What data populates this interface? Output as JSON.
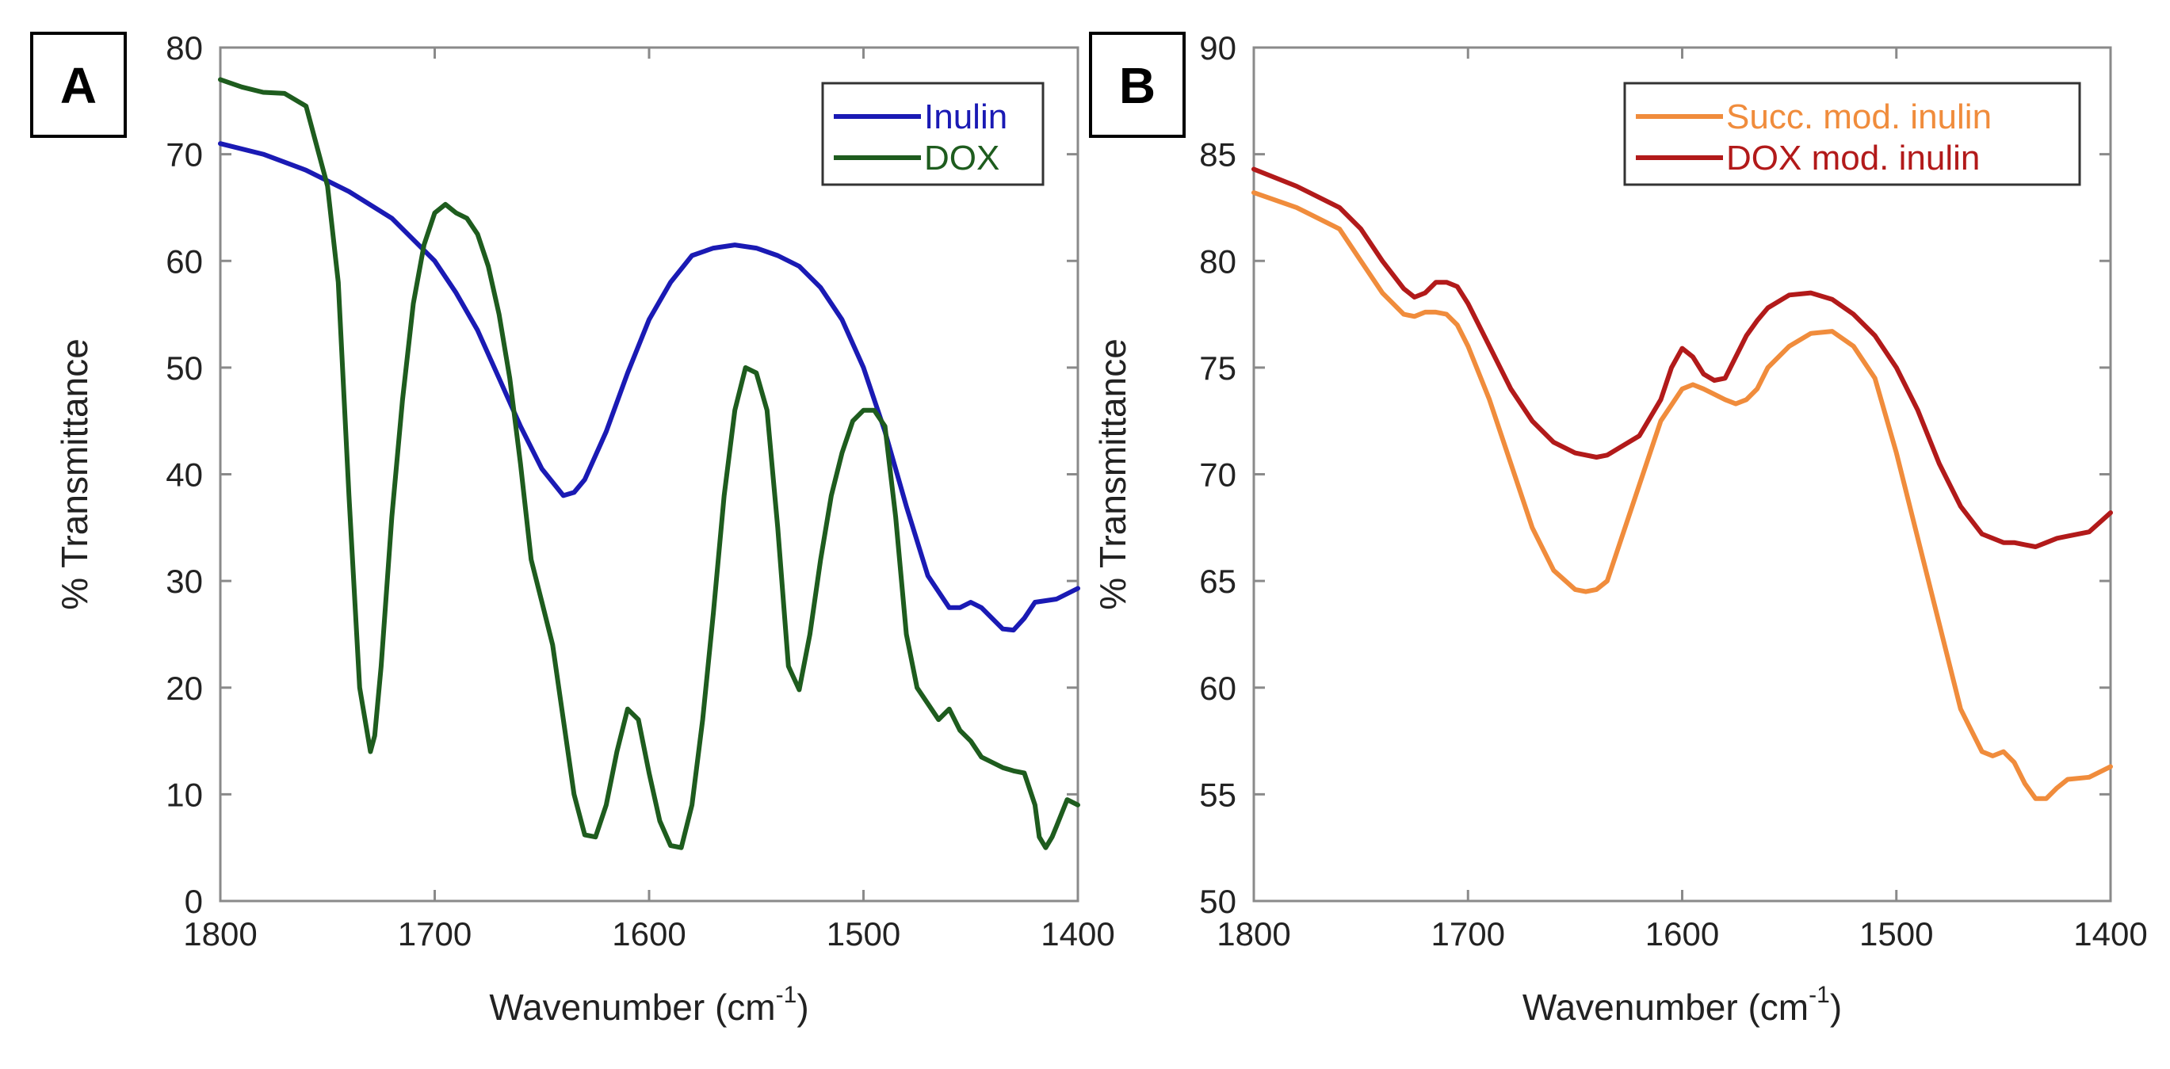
{
  "chart_data": [
    {
      "panel_label": "A",
      "type": "line",
      "title": "",
      "xlabel": "Wavenumber (cm",
      "xlabel_sup": "-1",
      "xlabel_close": ")",
      "ylabel": "% Transmittance",
      "xlim": [
        1800,
        1400
      ],
      "ylim": [
        0,
        80
      ],
      "xticks": [
        1800,
        1700,
        1600,
        1500,
        1400
      ],
      "yticks": [
        0,
        10,
        20,
        30,
        40,
        50,
        60,
        70,
        80
      ],
      "grid": false,
      "legend_position": "top-right",
      "series": [
        {
          "name": "Inulin",
          "color": "#1a1ab4",
          "x": [
            1800,
            1780,
            1760,
            1740,
            1720,
            1700,
            1690,
            1680,
            1670,
            1660,
            1650,
            1640,
            1635,
            1630,
            1620,
            1610,
            1600,
            1590,
            1580,
            1570,
            1560,
            1550,
            1540,
            1530,
            1520,
            1510,
            1500,
            1490,
            1480,
            1470,
            1460,
            1455,
            1450,
            1445,
            1440,
            1435,
            1430,
            1425,
            1420,
            1410,
            1400
          ],
          "y": [
            71,
            70,
            68.5,
            66.5,
            64,
            60,
            57,
            53.5,
            49,
            44.5,
            40.5,
            38,
            38.3,
            39.5,
            44,
            49.5,
            54.5,
            58,
            60.5,
            61.2,
            61.5,
            61.2,
            60.5,
            59.5,
            57.5,
            54.5,
            50,
            44,
            37,
            30.5,
            27.5,
            27.5,
            28,
            27.5,
            26.5,
            25.5,
            25.4,
            26.5,
            28,
            28.3,
            29.3
          ]
        },
        {
          "name": "DOX",
          "color": "#1e5c1e",
          "x": [
            1800,
            1790,
            1780,
            1770,
            1760,
            1750,
            1745,
            1740,
            1735,
            1730,
            1728,
            1725,
            1720,
            1715,
            1710,
            1705,
            1700,
            1695,
            1690,
            1685,
            1680,
            1675,
            1670,
            1665,
            1660,
            1655,
            1650,
            1645,
            1640,
            1635,
            1630,
            1625,
            1620,
            1615,
            1610,
            1605,
            1600,
            1595,
            1590,
            1585,
            1580,
            1575,
            1570,
            1565,
            1560,
            1555,
            1550,
            1545,
            1540,
            1535,
            1530,
            1525,
            1520,
            1515,
            1510,
            1505,
            1500,
            1495,
            1490,
            1485,
            1480,
            1475,
            1470,
            1465,
            1460,
            1455,
            1450,
            1445,
            1440,
            1435,
            1430,
            1425,
            1420,
            1418,
            1415,
            1412,
            1410,
            1405,
            1400
          ],
          "y": [
            77,
            76.3,
            75.8,
            75.7,
            74.5,
            67,
            58,
            38,
            20,
            14,
            15.5,
            22,
            36,
            47,
            56,
            61.5,
            64.5,
            65.3,
            64.5,
            64,
            62.5,
            59.5,
            55,
            49,
            41,
            32,
            28,
            24,
            17,
            10,
            6.2,
            6,
            9,
            14,
            18,
            17,
            12,
            7.5,
            5.2,
            5,
            9,
            17,
            27,
            38,
            46,
            50,
            49.5,
            46,
            35,
            22,
            19.8,
            25,
            32,
            38,
            42,
            45,
            46,
            46,
            44.5,
            36,
            25,
            20,
            18.5,
            17,
            18,
            16,
            15,
            13.5,
            13,
            12.5,
            12.2,
            12,
            9,
            6,
            5,
            6,
            7,
            9.5,
            9
          ]
        }
      ]
    },
    {
      "panel_label": "B",
      "type": "line",
      "title": "",
      "xlabel": "Wavenumber (cm",
      "xlabel_sup": "-1",
      "xlabel_close": ")",
      "ylabel": "% Transmittance",
      "xlim": [
        1800,
        1400
      ],
      "ylim": [
        50,
        90
      ],
      "xticks": [
        1800,
        1700,
        1600,
        1500,
        1400
      ],
      "yticks": [
        50,
        55,
        60,
        65,
        70,
        75,
        80,
        85,
        90
      ],
      "grid": false,
      "legend_position": "top-right",
      "series": [
        {
          "name": "Succ. mod. inulin",
          "color": "#f08c3c",
          "x": [
            1800,
            1780,
            1760,
            1750,
            1740,
            1730,
            1725,
            1720,
            1715,
            1710,
            1705,
            1700,
            1690,
            1680,
            1670,
            1660,
            1650,
            1645,
            1640,
            1635,
            1630,
            1620,
            1610,
            1600,
            1595,
            1590,
            1580,
            1575,
            1570,
            1565,
            1560,
            1550,
            1540,
            1530,
            1520,
            1510,
            1500,
            1490,
            1480,
            1470,
            1460,
            1455,
            1450,
            1445,
            1440,
            1435,
            1430,
            1425,
            1420,
            1410,
            1400
          ],
          "y": [
            83.2,
            82.5,
            81.5,
            80,
            78.5,
            77.5,
            77.4,
            77.6,
            77.6,
            77.5,
            77,
            76,
            73.5,
            70.5,
            67.5,
            65.5,
            64.6,
            64.5,
            64.6,
            65,
            66.5,
            69.5,
            72.5,
            74,
            74.2,
            74,
            73.5,
            73.3,
            73.5,
            74,
            75,
            76,
            76.6,
            76.7,
            76,
            74.5,
            71,
            67,
            63,
            59,
            57,
            56.8,
            57,
            56.5,
            55.5,
            54.8,
            54.8,
            55.3,
            55.7,
            55.8,
            56.3
          ]
        },
        {
          "name": "DOX mod. inulin",
          "color": "#b21a1a",
          "x": [
            1800,
            1780,
            1760,
            1750,
            1740,
            1730,
            1725,
            1720,
            1715,
            1710,
            1705,
            1700,
            1690,
            1680,
            1670,
            1660,
            1650,
            1640,
            1635,
            1630,
            1620,
            1610,
            1605,
            1600,
            1595,
            1590,
            1585,
            1580,
            1575,
            1570,
            1565,
            1560,
            1550,
            1540,
            1530,
            1520,
            1510,
            1500,
            1490,
            1480,
            1470,
            1460,
            1450,
            1445,
            1440,
            1435,
            1430,
            1425,
            1420,
            1410,
            1400
          ],
          "y": [
            84.3,
            83.5,
            82.5,
            81.5,
            80,
            78.7,
            78.3,
            78.5,
            79,
            79,
            78.8,
            78,
            76,
            74,
            72.5,
            71.5,
            71,
            70.8,
            70.9,
            71.2,
            71.8,
            73.5,
            75,
            75.9,
            75.5,
            74.7,
            74.4,
            74.5,
            75.5,
            76.5,
            77.2,
            77.8,
            78.4,
            78.5,
            78.2,
            77.5,
            76.5,
            75,
            73,
            70.5,
            68.5,
            67.2,
            66.8,
            66.8,
            66.7,
            66.6,
            66.8,
            67,
            67.1,
            67.3,
            68.2
          ]
        }
      ]
    }
  ]
}
